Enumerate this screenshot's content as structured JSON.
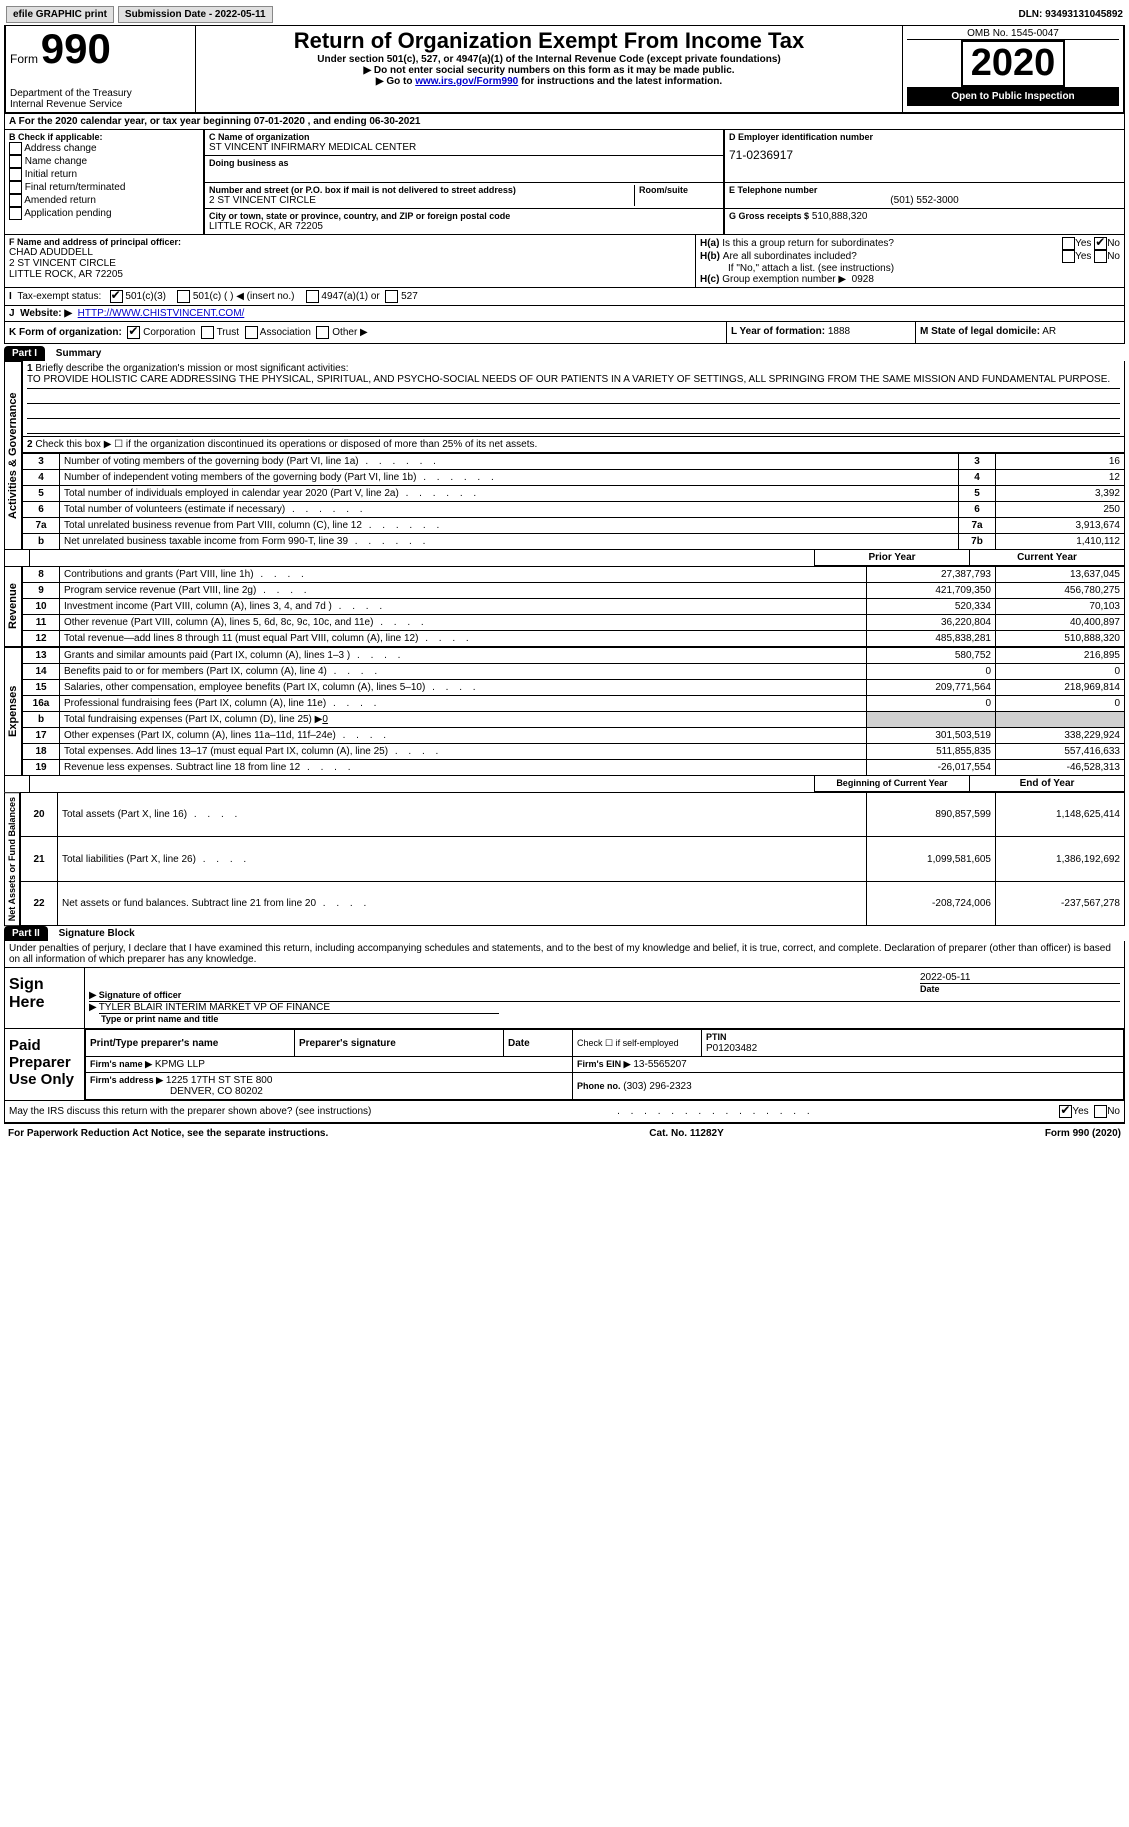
{
  "top": {
    "efile_btn": "efile GRAPHIC print",
    "submission": "Submission Date - 2022-05-11",
    "dln": "DLN: 93493131045892"
  },
  "hdr": {
    "form_label": "Form",
    "form_num": "990",
    "title": "Return of Organization Exempt From Income Tax",
    "sub1": "Under section 501(c), 527, or 4947(a)(1) of the Internal Revenue Code (except private foundations)",
    "sub2": "▶ Do not enter social security numbers on this form as it may be made public.",
    "sub3_pre": "▶ Go to ",
    "sub3_link": "www.irs.gov/Form990",
    "sub3_post": " for instructions and the latest information.",
    "dept": "Department of the Treasury",
    "irs": "Internal Revenue Service",
    "omb": "OMB No. 1545-0047",
    "year": "2020",
    "open": "Open to Public Inspection"
  },
  "a_line": "For the 2020 calendar year, or tax year beginning 07-01-2020   , and ending 06-30-2021",
  "b": {
    "label": "B Check if applicable:",
    "opts": [
      "Address change",
      "Name change",
      "Initial return",
      "Final return/terminated",
      "Amended return",
      "Application pending"
    ]
  },
  "c": {
    "name_lbl": "C Name of organization",
    "name": "ST VINCENT INFIRMARY MEDICAL CENTER",
    "dba_lbl": "Doing business as",
    "street_lbl": "Number and street (or P.O. box if mail is not delivered to street address)",
    "room_lbl": "Room/suite",
    "street": "2 ST VINCENT CIRCLE",
    "city_lbl": "City or town, state or province, country, and ZIP or foreign postal code",
    "city": "LITTLE ROCK, AR   72205"
  },
  "d": {
    "lbl": "D Employer identification number",
    "val": "71-0236917"
  },
  "e": {
    "lbl": "E Telephone number",
    "val": "(501) 552-3000"
  },
  "g": {
    "lbl": "G Gross receipts $",
    "val": "510,888,320"
  },
  "f": {
    "lbl": "F  Name and address of principal officer:",
    "name": "CHAD ADUDDELL",
    "l1": "2 ST VINCENT CIRCLE",
    "l2": "LITTLE ROCK, AR  72205"
  },
  "h": {
    "a": "Is this a group return for subordinates?",
    "b": "Are all subordinates included?",
    "bnote": "If \"No,\" attach a list. (see instructions)",
    "c": "Group exemption number ▶",
    "cval": "0928",
    "yes": "Yes",
    "no": "No"
  },
  "i": {
    "lbl": "Tax-exempt status:",
    "o1": "501(c)(3)",
    "o2": "501(c) (   ) ◀ (insert no.)",
    "o3": "4947(a)(1) or",
    "o4": "527"
  },
  "j": {
    "lbl": "Website: ▶",
    "val": "HTTP://WWW.CHISTVINCENT.COM/"
  },
  "k": {
    "lbl": "K Form of organization:",
    "o1": "Corporation",
    "o2": "Trust",
    "o3": "Association",
    "o4": "Other ▶"
  },
  "l": {
    "lbl": "L Year of formation:",
    "val": "1888"
  },
  "m": {
    "lbl": "M State of legal domicile:",
    "val": "AR"
  },
  "part1": {
    "hdr": "Part I",
    "title": "Summary",
    "l1_lbl": "Briefly describe the organization's mission or most significant activities:",
    "l1_txt": "TO PROVIDE HOLISTIC CARE ADDRESSING THE PHYSICAL, SPIRITUAL, AND PSYCHO-SOCIAL NEEDS OF OUR PATIENTS IN A VARIETY OF SETTINGS, ALL SPRINGING FROM THE SAME MISSION AND FUNDAMENTAL PURPOSE.",
    "l2": "Check this box ▶ ☐  if the organization discontinued its operations or disposed of more than 25% of its net assets.",
    "rows_ag": [
      {
        "n": "3",
        "t": "Number of voting members of the governing body (Part VI, line 1a)",
        "rn": "3",
        "v": "16"
      },
      {
        "n": "4",
        "t": "Number of independent voting members of the governing body (Part VI, line 1b)",
        "rn": "4",
        "v": "12"
      },
      {
        "n": "5",
        "t": "Total number of individuals employed in calendar year 2020 (Part V, line 2a)",
        "rn": "5",
        "v": "3,392"
      },
      {
        "n": "6",
        "t": "Total number of volunteers (estimate if necessary)",
        "rn": "6",
        "v": "250"
      },
      {
        "n": "7a",
        "t": "Total unrelated business revenue from Part VIII, column (C), line 12",
        "rn": "7a",
        "v": "3,913,674"
      },
      {
        "n": "b",
        "t": "Net unrelated business taxable income from Form 990-T, line 39",
        "rn": "7b",
        "v": "1,410,112"
      }
    ],
    "col_prior": "Prior Year",
    "col_curr": "Current Year",
    "rev_rows": [
      {
        "n": "8",
        "t": "Contributions and grants (Part VIII, line 1h)",
        "p": "27,387,793",
        "c": "13,637,045"
      },
      {
        "n": "9",
        "t": "Program service revenue (Part VIII, line 2g)",
        "p": "421,709,350",
        "c": "456,780,275"
      },
      {
        "n": "10",
        "t": "Investment income (Part VIII, column (A), lines 3, 4, and 7d )",
        "p": "520,334",
        "c": "70,103"
      },
      {
        "n": "11",
        "t": "Other revenue (Part VIII, column (A), lines 5, 6d, 8c, 9c, 10c, and 11e)",
        "p": "36,220,804",
        "c": "40,400,897"
      },
      {
        "n": "12",
        "t": "Total revenue—add lines 8 through 11 (must equal Part VIII, column (A), line 12)",
        "p": "485,838,281",
        "c": "510,888,320"
      }
    ],
    "exp_rows": [
      {
        "n": "13",
        "t": "Grants and similar amounts paid (Part IX, column (A), lines 1–3 )",
        "p": "580,752",
        "c": "216,895"
      },
      {
        "n": "14",
        "t": "Benefits paid to or for members (Part IX, column (A), line 4)",
        "p": "0",
        "c": "0"
      },
      {
        "n": "15",
        "t": "Salaries, other compensation, employee benefits (Part IX, column (A), lines 5–10)",
        "p": "209,771,564",
        "c": "218,969,814"
      },
      {
        "n": "16a",
        "t": "Professional fundraising fees (Part IX, column (A), line 11e)",
        "p": "0",
        "c": "0"
      }
    ],
    "exp_16b_t": "Total fundraising expenses (Part IX, column (D), line 25) ▶",
    "exp_16b_v": "0",
    "exp_rows2": [
      {
        "n": "17",
        "t": "Other expenses (Part IX, column (A), lines 11a–11d, 11f–24e)",
        "p": "301,503,519",
        "c": "338,229,924"
      },
      {
        "n": "18",
        "t": "Total expenses. Add lines 13–17 (must equal Part IX, column (A), line 25)",
        "p": "511,855,835",
        "c": "557,416,633"
      },
      {
        "n": "19",
        "t": "Revenue less expenses. Subtract line 18 from line 12",
        "p": "-26,017,554",
        "c": "-46,528,313"
      }
    ],
    "col_beg": "Beginning of Current Year",
    "col_end": "End of Year",
    "net_rows": [
      {
        "n": "20",
        "t": "Total assets (Part X, line 16)",
        "p": "890,857,599",
        "c": "1,148,625,414"
      },
      {
        "n": "21",
        "t": "Total liabilities (Part X, line 26)",
        "p": "1,099,581,605",
        "c": "1,386,192,692"
      },
      {
        "n": "22",
        "t": "Net assets or fund balances. Subtract line 21 from line 20",
        "p": "-208,724,006",
        "c": "-237,567,278"
      }
    ],
    "vlab_ag": "Activities & Governance",
    "vlab_rev": "Revenue",
    "vlab_exp": "Expenses",
    "vlab_net": "Net Assets or Fund Balances"
  },
  "part2": {
    "hdr": "Part II",
    "title": "Signature Block",
    "decl": "Under penalties of perjury, I declare that I have examined this return, including accompanying schedules and statements, and to the best of my knowledge and belief, it is true, correct, and complete. Declaration of preparer (other than officer) is based on all information of which preparer has any knowledge.",
    "sign_here": "Sign Here",
    "sig_officer": "Signature of officer",
    "sig_date": "Date",
    "sig_date_v": "2022-05-11",
    "sig_name": "TYLER BLAIR INTERIM MARKET VP OF FINANCE",
    "sig_name_lbl": "Type or print name and title",
    "paid_hdr": "Paid Preparer Use Only",
    "p_name_lbl": "Print/Type preparer's name",
    "p_sig_lbl": "Preparer's signature",
    "p_date_lbl": "Date",
    "p_self_lbl": "Check ☐ if self-employed",
    "ptin_lbl": "PTIN",
    "ptin": "P01203482",
    "firm_name_lbl": "Firm's name   ▶",
    "firm_name": "KPMG LLP",
    "firm_ein_lbl": "Firm's EIN ▶",
    "firm_ein": "13-5565207",
    "firm_addr_lbl": "Firm's address ▶",
    "firm_addr1": "1225 17TH ST STE 800",
    "firm_addr2": "DENVER, CO  80202",
    "firm_phone_lbl": "Phone no.",
    "firm_phone": "(303) 296-2323",
    "discuss": "May the IRS discuss this return with the preparer shown above? (see instructions)"
  },
  "footer": {
    "pra": "For Paperwork Reduction Act Notice, see the separate instructions.",
    "cat": "Cat. No. 11282Y",
    "form": "Form 990 (2020)"
  }
}
